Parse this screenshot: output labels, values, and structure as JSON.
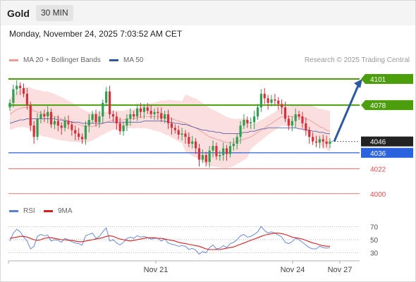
{
  "header": {
    "title": "Gold",
    "timeframe": "30 MIN"
  },
  "datetime": "Monday, November 24, 2025 7:03:52 AM CET",
  "legend": {
    "ma_bb": "MA 20 + Bollinger Bands",
    "ma50": "MA 50",
    "rsi": "RSI",
    "rsi_ma": "9MA"
  },
  "copyright": "Research © 2025 Trading Central",
  "colors": {
    "bull": "#2e9e4f",
    "bear": "#d6303a",
    "band_fill": "#fad4d4",
    "ma20": "#f09a9a",
    "ma50": "#5c5fa8",
    "resistance": "#4d9e0c",
    "pivot": "#2a62e0",
    "support": "#e05050",
    "arrow": "#2b5aa0",
    "last_price": "#222222",
    "rsi": "#5b7fd6",
    "rsi_ma": "#d42020"
  },
  "chart_data": {
    "type": "candlestick",
    "x_ticks": [
      "Nov 21",
      "Nov 24",
      "Nov 27"
    ],
    "price_range": [
      3998,
      4106
    ],
    "levels": [
      {
        "label": "4101",
        "value": 4101,
        "kind": "resistance"
      },
      {
        "label": "4078",
        "value": 4078,
        "kind": "resistance"
      },
      {
        "label": "4046",
        "value": 4046,
        "kind": "last"
      },
      {
        "label": "4036",
        "value": 4036,
        "kind": "pivot"
      },
      {
        "label": "4022",
        "value": 4022,
        "kind": "support"
      },
      {
        "label": "4000",
        "value": 4000,
        "kind": "support"
      }
    ],
    "forecast": {
      "from": 4046,
      "to": 4101
    },
    "closes": [
      4080,
      4092,
      4095,
      4093,
      4088,
      4078,
      4060,
      4050,
      4066,
      4070,
      4068,
      4072,
      4061,
      4064,
      4060,
      4058,
      4064,
      4061,
      4056,
      4053,
      4050,
      4048,
      4060,
      4065,
      4070,
      4063,
      4068,
      4080,
      4090,
      4070,
      4068,
      4062,
      4055,
      4060,
      4066,
      4070,
      4068,
      4075,
      4072,
      4076,
      4073,
      4070,
      4072,
      4071,
      4066,
      4070,
      4062,
      4058,
      4056,
      4052,
      4053,
      4050,
      4044,
      4046,
      4040,
      4030,
      4034,
      4028,
      4038,
      4042,
      4033,
      4034,
      4040,
      4035,
      4042,
      4044,
      4050,
      4060,
      4065,
      4062,
      4063,
      4068,
      4076,
      4088,
      4084,
      4080,
      4083,
      4082,
      4079,
      4076,
      4066,
      4060,
      4064,
      4070,
      4068,
      4062,
      4056,
      4050,
      4046,
      4045,
      4048,
      4046,
      4044,
      4046
    ],
    "ma20": [
      4070,
      4072,
      4074,
      4075,
      4076,
      4076,
      4075,
      4073,
      4072,
      4071,
      4070,
      4070,
      4069,
      4068,
      4067,
      4066,
      4065,
      4064,
      4063,
      4062,
      4061,
      4060,
      4059,
      4059,
      4059,
      4060,
      4061,
      4062,
      4063,
      4064,
      4065,
      4065,
      4065,
      4065,
      4066,
      4066,
      4066,
      4067,
      4067,
      4068,
      4068,
      4068,
      4068,
      4068,
      4068,
      4067,
      4067,
      4066,
      4065,
      4064,
      4063,
      4062,
      4061,
      4059,
      4058,
      4056,
      4054,
      4052,
      4050,
      4049,
      4048,
      4047,
      4046,
      4045,
      4045,
      4045,
      4046,
      4047,
      4048,
      4049,
      4050,
      4052,
      4054,
      4056,
      4058,
      4060,
      4062,
      4064,
      4066,
      4068,
      4068,
      4068,
      4068,
      4068,
      4068,
      4067,
      4066,
      4065,
      4063,
      4061,
      4059,
      4058,
      4056,
      4055
    ],
    "ma50": [
      4062,
      4063,
      4064,
      4065,
      4065,
      4066,
      4066,
      4066,
      4066,
      4066,
      4066,
      4066,
      4066,
      4066,
      4065,
      4065,
      4064,
      4064,
      4063,
      4063,
      4063,
      4062,
      4062,
      4062,
      4062,
      4062,
      4062,
      4062,
      4063,
      4063,
      4063,
      4063,
      4063,
      4063,
      4063,
      4063,
      4063,
      4063,
      4063,
      4064,
      4064,
      4064,
      4064,
      4064,
      4064,
      4064,
      4063,
      4063,
      4062,
      4062,
      4061,
      4061,
      4060,
      4059,
      4058,
      4057,
      4056,
      4056,
      4055,
      4055,
      4054,
      4054,
      4053,
      4053,
      4053,
      4053,
      4053,
      4053,
      4054,
      4054,
      4055,
      4055,
      4056,
      4057,
      4057,
      4058,
      4058,
      4058,
      4058,
      4058,
      4058,
      4058,
      4058,
      4058,
      4057,
      4057,
      4056,
      4056,
      4055,
      4055,
      4054,
      4054,
      4053,
      4053
    ],
    "rsi_levels": [
      70,
      50,
      30
    ],
    "rsi_range": [
      20,
      80
    ],
    "rsi": [
      48,
      60,
      66,
      62,
      54,
      48,
      36,
      40,
      55,
      58,
      56,
      57,
      48,
      50,
      49,
      46,
      52,
      50,
      47,
      45,
      44,
      42,
      56,
      58,
      60,
      52,
      55,
      62,
      68,
      48,
      50,
      45,
      42,
      46,
      52,
      54,
      52,
      56,
      54,
      55,
      53,
      51,
      52,
      52,
      48,
      51,
      45,
      43,
      42,
      40,
      41,
      40,
      35,
      37,
      34,
      28,
      32,
      30,
      38,
      42,
      36,
      37,
      41,
      38,
      44,
      46,
      50,
      56,
      58,
      54,
      55,
      58,
      62,
      70,
      64,
      60,
      62,
      60,
      57,
      54,
      46,
      44,
      47,
      52,
      50,
      46,
      42,
      38,
      36,
      36,
      40,
      38,
      37,
      38
    ],
    "rsi_ma": [
      52,
      53,
      54,
      55,
      55,
      54,
      52,
      50,
      49,
      50,
      52,
      53,
      53,
      52,
      51,
      50,
      50,
      49,
      49,
      48,
      47,
      47,
      48,
      49,
      50,
      51,
      52,
      53,
      55,
      56,
      55,
      53,
      51,
      50,
      49,
      48,
      49,
      50,
      51,
      52,
      53,
      53,
      53,
      52,
      52,
      51,
      50,
      49,
      48,
      46,
      45,
      44,
      43,
      42,
      41,
      40,
      38,
      36,
      35,
      35,
      35,
      35,
      36,
      37,
      38,
      39,
      41,
      43,
      45,
      47,
      49,
      51,
      53,
      55,
      57,
      58,
      59,
      60,
      60,
      59,
      58,
      56,
      54,
      53,
      52,
      51,
      49,
      47,
      45,
      44,
      42,
      41,
      40,
      40
    ]
  }
}
